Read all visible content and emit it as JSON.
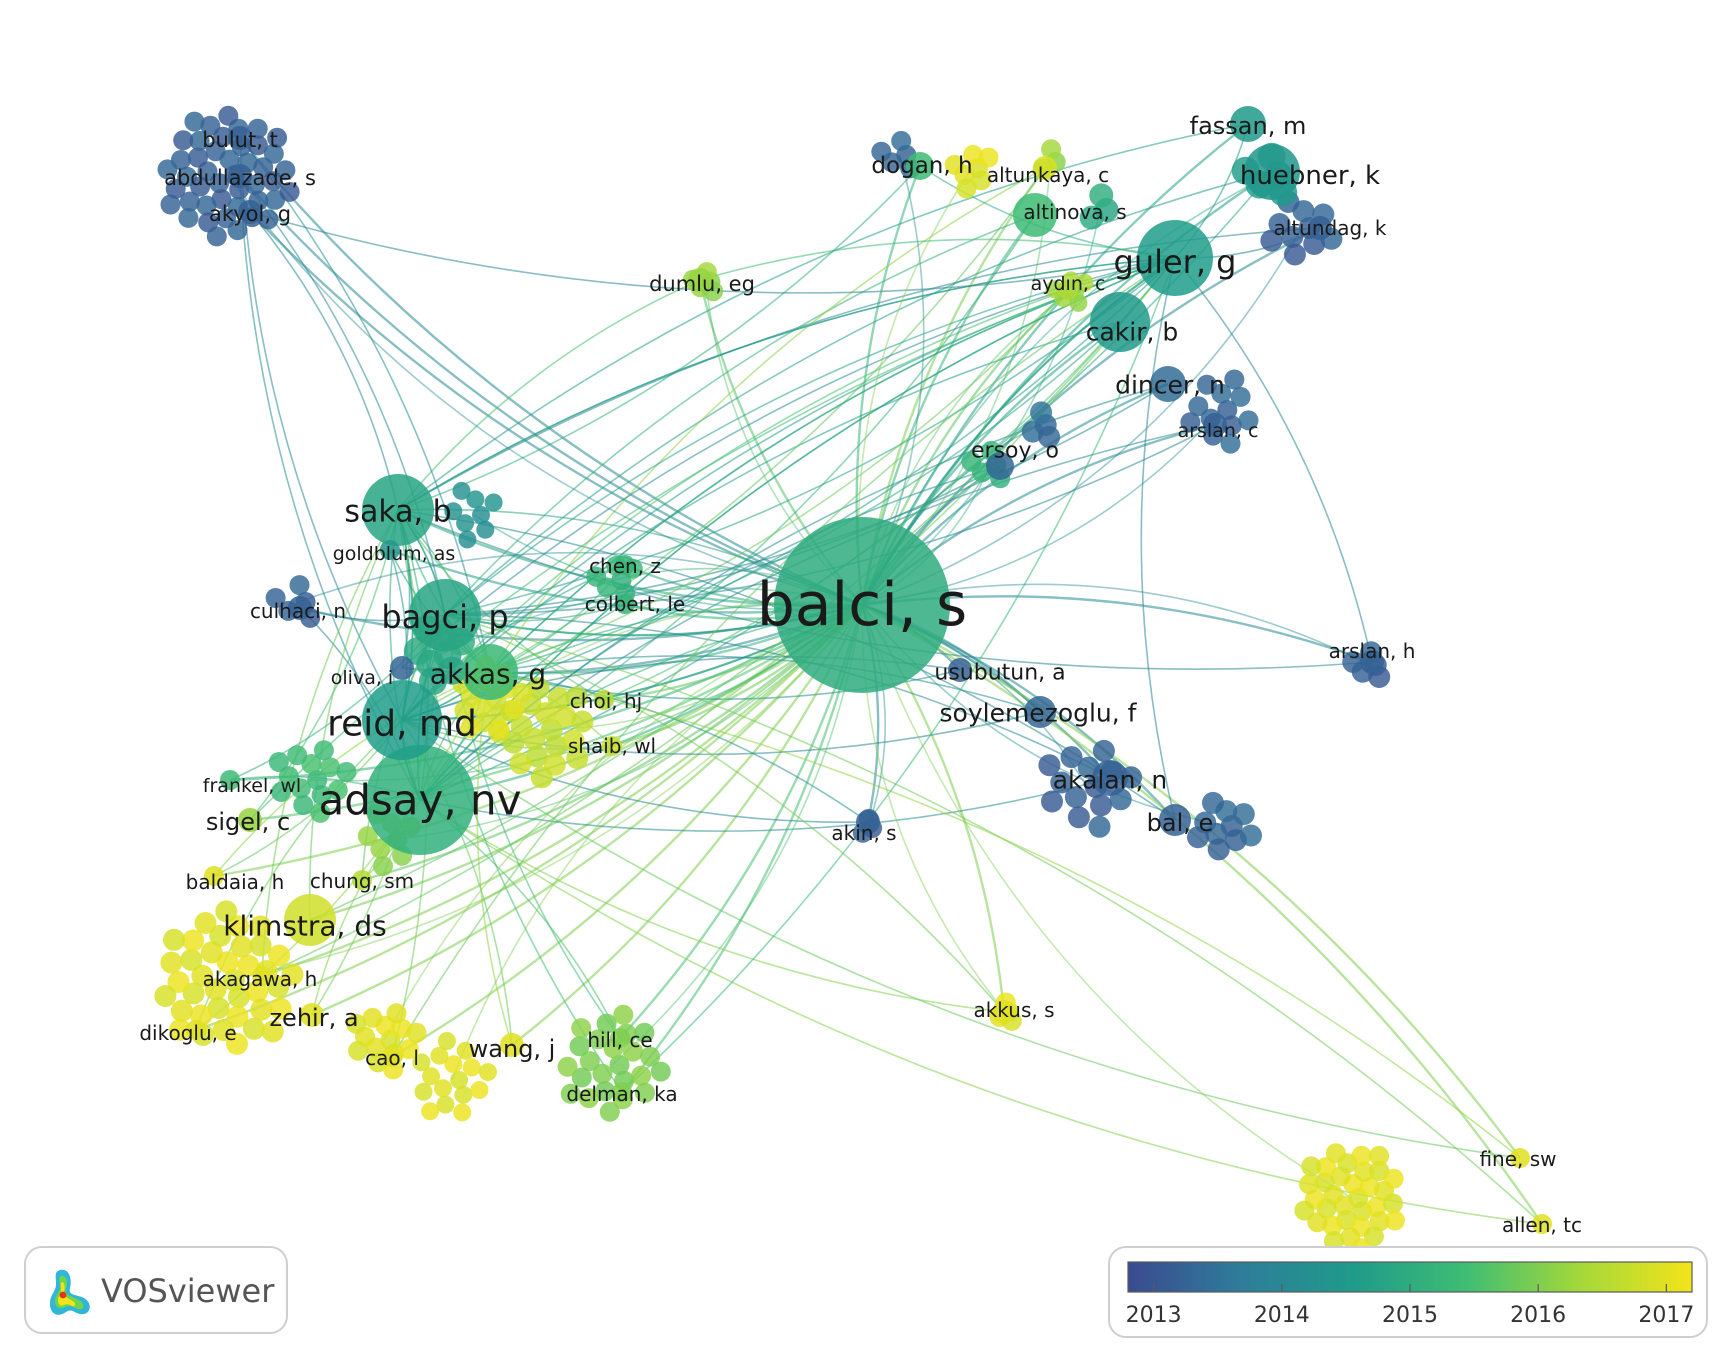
{
  "app": {
    "name": "VOSviewer"
  },
  "colors": {
    "scale": [
      "#3b4a8f",
      "#2e7d9a",
      "#1f9b8a",
      "#3fbd73",
      "#a3d83a",
      "#f3e41a"
    ]
  },
  "legend": {
    "type": "color-scale",
    "min": 2012.8,
    "max": 2017.2,
    "ticks": [
      "2013",
      "2014",
      "2015",
      "2016",
      "2017"
    ]
  },
  "network": {
    "nodes": [
      {
        "id": "balci",
        "label": "balci, s",
        "score": 2015.0,
        "weight": 10
      },
      {
        "id": "adsay",
        "label": "adsay, nv",
        "score": 2015.1,
        "weight": 7
      },
      {
        "id": "reid",
        "label": "reid, md",
        "score": 2014.6,
        "weight": 5
      },
      {
        "id": "saka",
        "label": "saka, b",
        "score": 2014.8,
        "weight": 5
      },
      {
        "id": "bagci",
        "label": "bagci, p",
        "score": 2014.8,
        "weight": 5
      },
      {
        "id": "akkas",
        "label": "akkas, g",
        "score": 2015.3,
        "weight": 4
      },
      {
        "id": "guler",
        "label": "guler, g",
        "score": 2014.6,
        "weight": 5
      },
      {
        "id": "huebner",
        "label": "huebner, k",
        "score": 2014.4,
        "weight": 4
      },
      {
        "id": "fassan",
        "label": "fassan, m",
        "score": 2014.5,
        "weight": 3
      },
      {
        "id": "cakir",
        "label": "cakir, b",
        "score": 2014.5,
        "weight": 4
      },
      {
        "id": "dincer",
        "label": "dincer, n",
        "score": 2013.4,
        "weight": 3
      },
      {
        "id": "klimstra",
        "label": "klimstra, ds",
        "score": 2016.8,
        "weight": 4
      },
      {
        "id": "soylemezoglu",
        "label": "soylemezoglu, f",
        "score": 2013.3,
        "weight": 3
      },
      {
        "id": "akalan",
        "label": "akalan, n",
        "score": 2013.2,
        "weight": 3
      },
      {
        "id": "bal",
        "label": "bal, e",
        "score": 2013.2,
        "weight": 2
      },
      {
        "id": "usubutun",
        "label": "usubutun, a",
        "score": 2013.2,
        "weight": 2
      },
      {
        "id": "ersoy",
        "label": "ersoy, o",
        "score": 2013.3,
        "weight": 2
      },
      {
        "id": "dogan",
        "label": "dogan, h",
        "score": 2015.4,
        "weight": 2
      },
      {
        "id": "altunkaya",
        "label": "altunkaya, c",
        "score": 2016.9,
        "weight": 2
      },
      {
        "id": "altinova",
        "label": "altinova, s",
        "score": 2015.4,
        "weight": 2
      },
      {
        "id": "altundag",
        "label": "altundag, k",
        "score": 2013.2,
        "weight": 2
      },
      {
        "id": "aydin",
        "label": "aydın, c",
        "score": 2016.4,
        "weight": 2
      },
      {
        "id": "arslanc",
        "label": "arslan, c",
        "score": 2013.2,
        "weight": 2
      },
      {
        "id": "arslanh",
        "label": "arslan, h",
        "score": 2013.2,
        "weight": 2
      },
      {
        "id": "akin",
        "label": "akin, s",
        "score": 2013.2,
        "weight": 2
      },
      {
        "id": "akkus",
        "label": "akkus, s",
        "score": 2017.0,
        "weight": 2
      },
      {
        "id": "dumlu",
        "label": "dumlu, eg",
        "score": 2016.2,
        "weight": 2
      },
      {
        "id": "bulut",
        "label": "bulut, t",
        "score": 2013.2,
        "weight": 2
      },
      {
        "id": "abdullazade",
        "label": "abdullazade, s",
        "score": 2013.2,
        "weight": 2
      },
      {
        "id": "akyol",
        "label": "akyol, g",
        "score": 2013.2,
        "weight": 2
      },
      {
        "id": "goldblum",
        "label": "goldblum, as",
        "score": 2014.4,
        "weight": 2
      },
      {
        "id": "culhaci",
        "label": "culhaci, n",
        "score": 2013.2,
        "weight": 2
      },
      {
        "id": "oliva",
        "label": "oliva, i",
        "score": 2013.3,
        "weight": 2
      },
      {
        "id": "chen",
        "label": "chen, z",
        "score": 2015.2,
        "weight": 2
      },
      {
        "id": "colbert",
        "label": "colbert, le",
        "score": 2015.2,
        "weight": 2
      },
      {
        "id": "choi",
        "label": "choi, hj",
        "score": 2016.5,
        "weight": 2
      },
      {
        "id": "shaib",
        "label": "shaib, wl",
        "score": 2016.7,
        "weight": 2
      },
      {
        "id": "frankel",
        "label": "frankel, wl",
        "score": 2015.4,
        "weight": 2
      },
      {
        "id": "sigel",
        "label": "sigel, c",
        "score": 2016.2,
        "weight": 2
      },
      {
        "id": "baldaia",
        "label": "baldaia, h",
        "score": 2017.0,
        "weight": 2
      },
      {
        "id": "chung",
        "label": "chung, sm",
        "score": 2016.5,
        "weight": 2
      },
      {
        "id": "akagawa",
        "label": "akagawa, h",
        "score": 2017.0,
        "weight": 2
      },
      {
        "id": "dikoglu",
        "label": "dikoglu, e",
        "score": 2017.0,
        "weight": 2
      },
      {
        "id": "zehir",
        "label": "zehir, a",
        "score": 2017.0,
        "weight": 2
      },
      {
        "id": "cao",
        "label": "cao, l",
        "score": 2017.0,
        "weight": 2
      },
      {
        "id": "wang",
        "label": "wang, j",
        "score": 2017.0,
        "weight": 2
      },
      {
        "id": "hill",
        "label": "hill, ce",
        "score": 2016.0,
        "weight": 2
      },
      {
        "id": "delman",
        "label": "delman, ka",
        "score": 2016.0,
        "weight": 2
      },
      {
        "id": "fine",
        "label": "fine, sw",
        "score": 2017.0,
        "weight": 2
      },
      {
        "id": "allen",
        "label": "allen, tc",
        "score": 2017.0,
        "weight": 2
      }
    ]
  }
}
